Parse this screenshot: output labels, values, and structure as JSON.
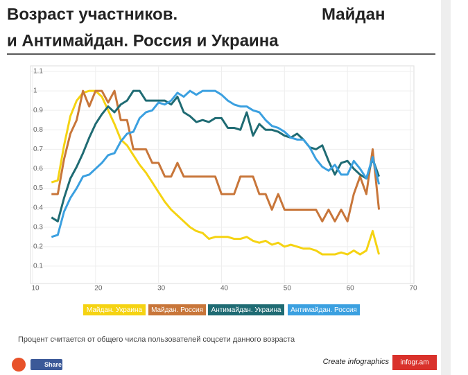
{
  "chart_data": {
    "type": "line",
    "title": [
      "Возраст участников.",
      "Майдан",
      "и Антимайдан. Россия и Украина"
    ],
    "note": "Процент считается от общего числа пользователей соцсети данного возраста",
    "x": [
      13,
      14,
      15,
      16,
      17,
      18,
      19,
      20,
      21,
      22,
      23,
      24,
      25,
      26,
      27,
      28,
      29,
      30,
      31,
      32,
      33,
      34,
      35,
      36,
      37,
      38,
      39,
      40,
      41,
      42,
      43,
      44,
      45,
      46,
      47,
      48,
      49,
      50,
      51,
      52,
      53,
      54,
      55,
      56,
      57,
      58,
      59,
      60,
      61,
      62,
      63,
      64,
      65
    ],
    "xlim": [
      10,
      70
    ],
    "xticks": [
      10,
      20,
      30,
      40,
      50,
      60,
      70
    ],
    "ylim": [
      0,
      1.1
    ],
    "yticks": [
      0.1,
      0.2,
      0.3,
      0.4,
      0.5,
      0.6,
      0.7,
      0.8,
      0.9,
      1,
      1.1
    ],
    "grid": true,
    "series": [
      {
        "name": "Майдан. Украина",
        "color": "#f5d312",
        "values": [
          0.53,
          0.54,
          0.72,
          0.87,
          0.95,
          0.99,
          1.0,
          1.0,
          0.97,
          0.9,
          0.83,
          0.75,
          0.72,
          0.67,
          0.62,
          0.58,
          0.53,
          0.48,
          0.43,
          0.39,
          0.36,
          0.33,
          0.3,
          0.28,
          0.27,
          0.24,
          0.25,
          0.25,
          0.25,
          0.24,
          0.24,
          0.25,
          0.23,
          0.22,
          0.23,
          0.21,
          0.22,
          0.2,
          0.21,
          0.2,
          0.19,
          0.19,
          0.18,
          0.16,
          0.16,
          0.16,
          0.17,
          0.16,
          0.18,
          0.16,
          0.18,
          0.28,
          0.16
        ]
      },
      {
        "name": "Майдан. Россия",
        "color": "#c8763a",
        "values": [
          0.47,
          0.47,
          0.65,
          0.78,
          0.85,
          1.0,
          0.92,
          1.0,
          1.0,
          0.94,
          1.0,
          0.85,
          0.85,
          0.7,
          0.7,
          0.7,
          0.63,
          0.63,
          0.56,
          0.56,
          0.63,
          0.56,
          0.56,
          0.56,
          0.56,
          0.56,
          0.56,
          0.47,
          0.47,
          0.47,
          0.56,
          0.56,
          0.56,
          0.47,
          0.47,
          0.39,
          0.47,
          0.39,
          0.39,
          0.39,
          0.39,
          0.39,
          0.39,
          0.33,
          0.39,
          0.33,
          0.39,
          0.33,
          0.47,
          0.56,
          0.47,
          0.7,
          0.39
        ]
      },
      {
        "name": "Антимайдан. Украина",
        "color": "#1f6b73",
        "values": [
          0.35,
          0.33,
          0.45,
          0.55,
          0.61,
          0.68,
          0.76,
          0.83,
          0.88,
          0.92,
          0.89,
          0.93,
          0.95,
          1.0,
          1.0,
          0.95,
          0.95,
          0.95,
          0.95,
          0.93,
          0.97,
          0.89,
          0.87,
          0.84,
          0.85,
          0.84,
          0.86,
          0.86,
          0.81,
          0.81,
          0.8,
          0.89,
          0.77,
          0.83,
          0.8,
          0.8,
          0.79,
          0.77,
          0.76,
          0.78,
          0.75,
          0.71,
          0.7,
          0.72,
          0.64,
          0.57,
          0.63,
          0.64,
          0.6,
          0.57,
          0.55,
          0.65,
          0.56
        ]
      },
      {
        "name": "Антимайдан. Россия",
        "color": "#3ba0e0",
        "values": [
          0.25,
          0.26,
          0.38,
          0.45,
          0.5,
          0.56,
          0.57,
          0.6,
          0.63,
          0.67,
          0.68,
          0.74,
          0.78,
          0.79,
          0.86,
          0.89,
          0.9,
          0.94,
          0.93,
          0.95,
          0.99,
          0.97,
          1.0,
          0.98,
          1.0,
          1.0,
          1.0,
          0.98,
          0.95,
          0.93,
          0.92,
          0.92,
          0.9,
          0.89,
          0.85,
          0.82,
          0.81,
          0.79,
          0.76,
          0.75,
          0.75,
          0.71,
          0.65,
          0.61,
          0.59,
          0.62,
          0.57,
          0.57,
          0.64,
          0.6,
          0.55,
          0.66,
          0.52
        ]
      }
    ]
  },
  "footer": {
    "share": "Share",
    "create": "Create infographics",
    "brand": "infogr.am"
  }
}
